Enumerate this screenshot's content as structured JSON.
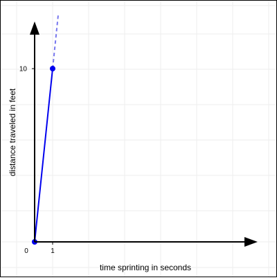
{
  "chart_data": {
    "type": "line",
    "xlabel": "time sprinting in seconds",
    "ylabel": "distance traveled in feet",
    "x_tick_labels": [
      "0",
      "1"
    ],
    "y_tick_labels": [
      "10"
    ],
    "xlim": [
      0,
      11
    ],
    "ylim": [
      0,
      12.7
    ],
    "grid": true,
    "series": [
      {
        "points": [
          [
            0,
            0
          ],
          [
            1,
            10
          ]
        ],
        "color": "#0000ee",
        "extension_dashed": [
          [
            1,
            10
          ],
          [
            1.31,
            13.1
          ]
        ],
        "extension_color": "#7777ee"
      }
    ]
  }
}
